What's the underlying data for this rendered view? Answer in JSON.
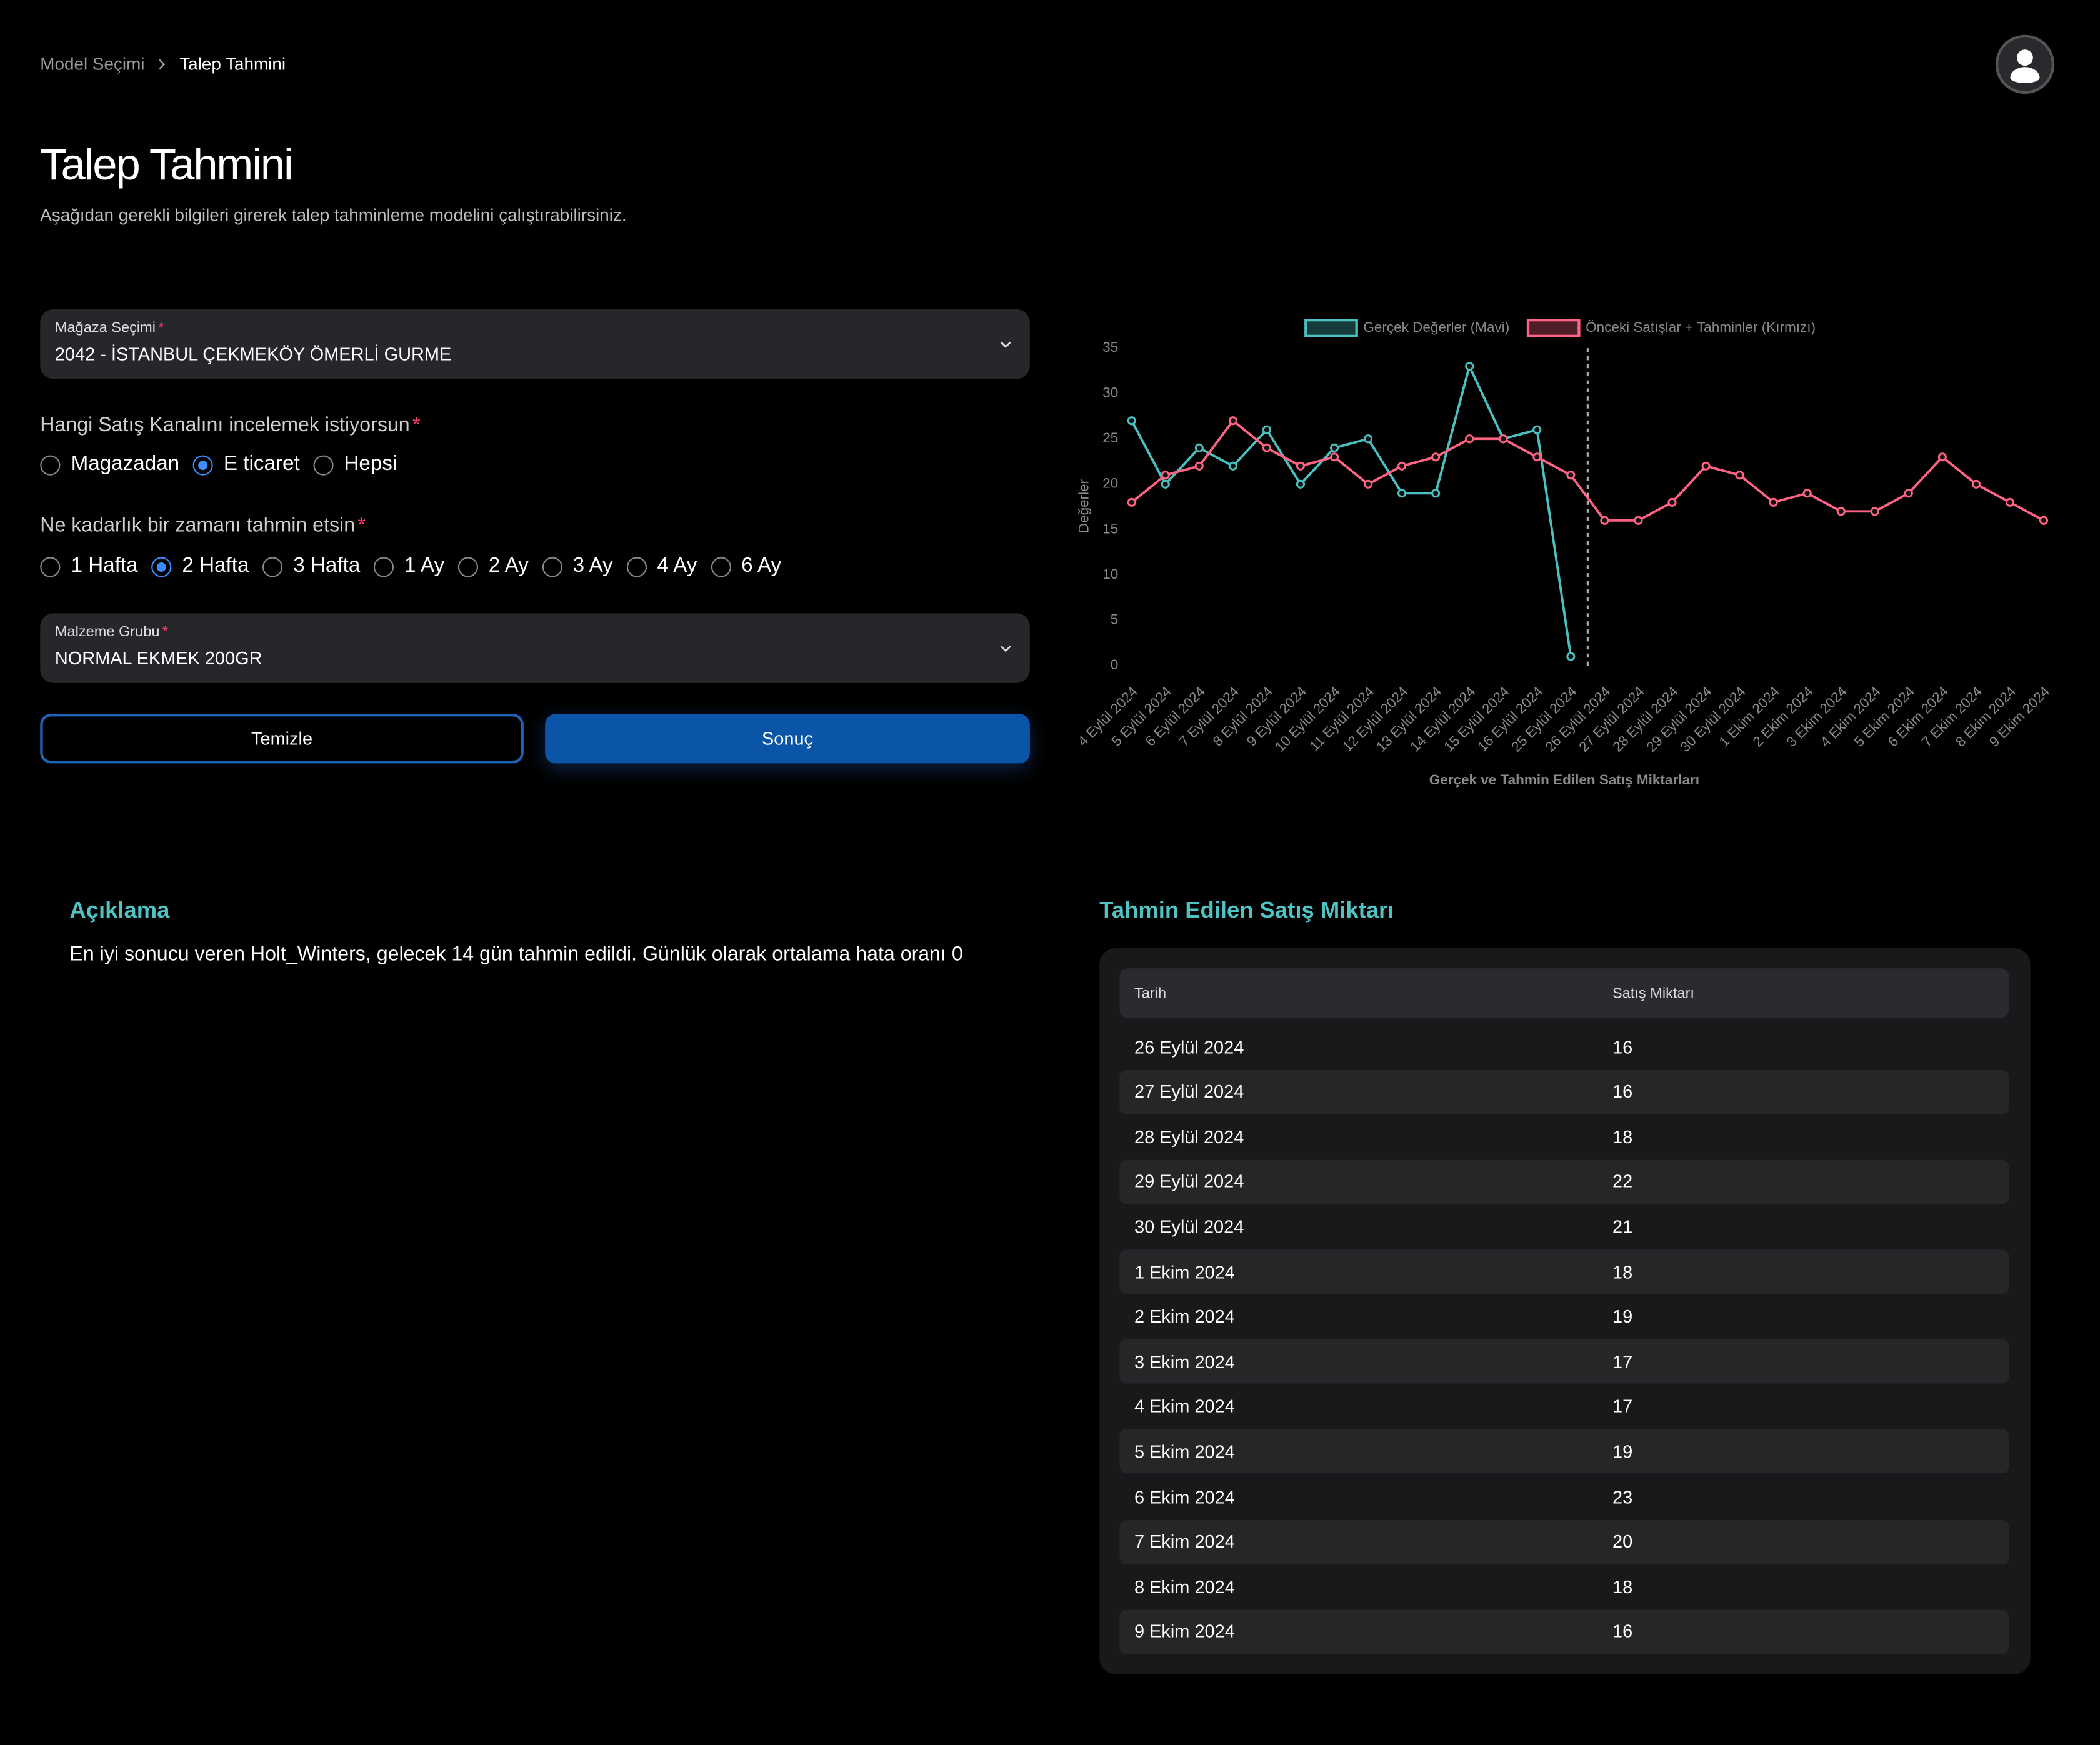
{
  "breadcrumb": {
    "items": [
      "Model Seçimi",
      "Talep Tahmini"
    ]
  },
  "header": {
    "title": "Talep Tahmini",
    "subtitle": "Aşağıdan gerekli bilgileri girerek talep tahminleme modelini çalıştırabilirsiniz."
  },
  "form": {
    "required_mark": "*",
    "store": {
      "label": "Mağaza Seçimi",
      "value": "2042 - İSTANBUL ÇEKMEKÖY ÖMERLİ GURME"
    },
    "channel": {
      "label": "Hangi Satış Kanalını incelemek istiyorsun",
      "options": [
        "Magazadan",
        "E ticaret",
        "Hepsi"
      ],
      "selected": 1
    },
    "horizon": {
      "label": "Ne kadarlık bir zamanı tahmin etsin",
      "options": [
        "1 Hafta",
        "2 Hafta",
        "3 Hafta",
        "1 Ay",
        "2 Ay",
        "3 Ay",
        "4 Ay",
        "6 Ay"
      ],
      "selected": 1
    },
    "material": {
      "label": "Malzeme Grubu",
      "value": "NORMAL EKMEK 200GR"
    },
    "buttons": {
      "clear": "Temizle",
      "submit": "Sonuç"
    }
  },
  "chart_data": {
    "type": "line",
    "x_label": "Gerçek ve Tahmin Edilen Satış Miktarları",
    "y_label": "Değerler",
    "categories": [
      "4 Eylül 2024",
      "5 Eylül 2024",
      "6 Eylül 2024",
      "7 Eylül 2024",
      "8 Eylül 2024",
      "9 Eylül 2024",
      "10 Eylül 2024",
      "11 Eylül 2024",
      "12 Eylül 2024",
      "13 Eylül 2024",
      "14 Eylül 2024",
      "15 Eylül 2024",
      "16 Eylül 2024",
      "25 Eylül 2024",
      "26 Eylül 2024",
      "27 Eylül 2024",
      "28 Eylül 2024",
      "29 Eylül 2024",
      "30 Eylül 2024",
      "1 Ekim 2024",
      "2 Ekim 2024",
      "3 Ekim 2024",
      "4 Ekim 2024",
      "5 Ekim 2024",
      "6 Ekim 2024",
      "7 Ekim 2024",
      "8 Ekim 2024",
      "9 Ekim 2024"
    ],
    "series": [
      {
        "name": "Gerçek Değerler (Mavi)",
        "color": "#4bc0c0",
        "values": [
          27,
          20,
          24,
          22,
          26,
          20,
          24,
          25,
          19,
          19,
          33,
          25,
          26,
          1,
          null,
          null,
          null,
          null,
          null,
          null,
          null,
          null,
          null,
          null,
          null,
          null,
          null,
          null
        ]
      },
      {
        "name": "Önceki Satışlar + Tahminler (Kırmızı)",
        "color": "#ff6384",
        "values": [
          18,
          21,
          22,
          27,
          24,
          22,
          23,
          20,
          22,
          23,
          25,
          25,
          23,
          21,
          16,
          16,
          18,
          22,
          21,
          18,
          19,
          17,
          17,
          19,
          23,
          20,
          18,
          16
        ]
      }
    ],
    "ylim": [
      0,
      35
    ],
    "yticks": [
      0,
      5,
      10,
      15,
      20,
      25,
      30,
      35
    ],
    "grid": false,
    "legend": "top"
  },
  "explanation": {
    "title": "Açıklama",
    "text": "En iyi sonucu veren Holt_Winters, gelecek 14 gün tahmin edildi. Günlük olarak ortalama hata oranı 0"
  },
  "table": {
    "title": "Tahmin Edilen Satış Miktarı",
    "columns": [
      "Tarih",
      "Satış Miktarı"
    ],
    "rows": [
      [
        "26 Eylül 2024",
        16
      ],
      [
        "27 Eylül 2024",
        16
      ],
      [
        "28 Eylül 2024",
        18
      ],
      [
        "29 Eylül 2024",
        22
      ],
      [
        "30 Eylül 2024",
        21
      ],
      [
        "1 Ekim 2024",
        18
      ],
      [
        "2 Ekim 2024",
        19
      ],
      [
        "3 Ekim 2024",
        17
      ],
      [
        "4 Ekim 2024",
        17
      ],
      [
        "5 Ekim 2024",
        19
      ],
      [
        "6 Ekim 2024",
        23
      ],
      [
        "7 Ekim 2024",
        20
      ],
      [
        "8 Ekim 2024",
        18
      ],
      [
        "9 Ekim 2024",
        16
      ]
    ]
  }
}
